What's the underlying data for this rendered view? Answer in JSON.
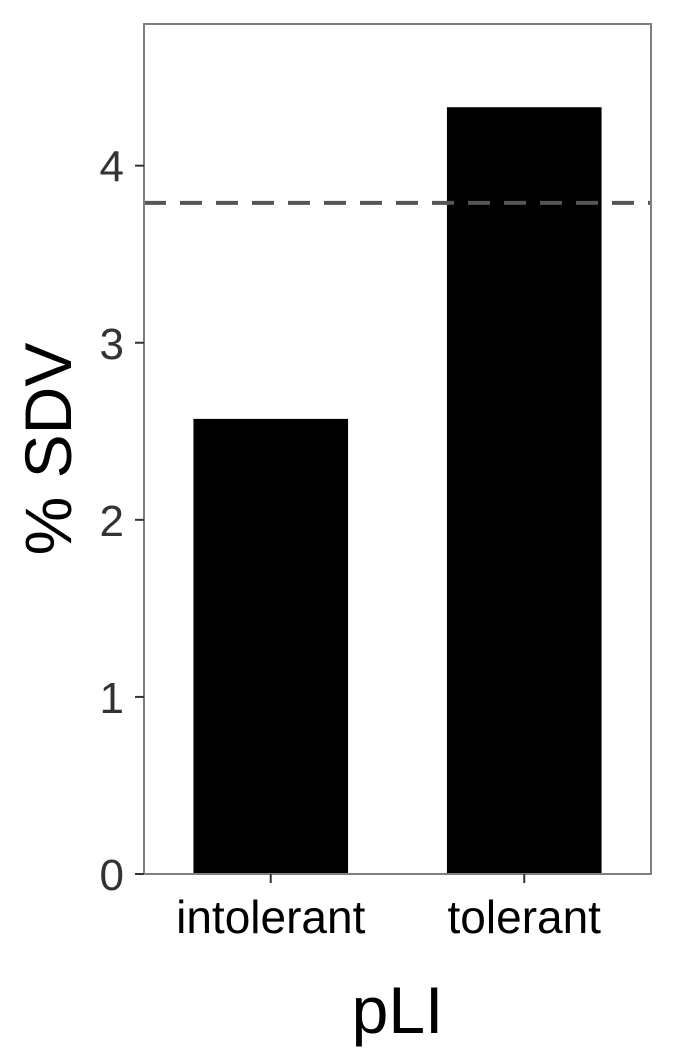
{
  "chart_data": {
    "type": "bar",
    "title": "",
    "xlabel": "pLI",
    "ylabel": "% SDV",
    "categories": [
      "intolerant",
      "tolerant"
    ],
    "values": [
      2.57,
      4.33
    ],
    "ylim": [
      0,
      4.8
    ],
    "yticks": [
      0,
      1,
      2,
      3,
      4
    ],
    "reference_line": {
      "value": 3.79,
      "style": "dashed"
    },
    "grid": false,
    "legend": "none",
    "colors": {
      "bar": "#000000",
      "panel_border": "#7f7f7f",
      "reference_line": "#555555",
      "tick_label": "#333333",
      "axis_title": "#000000"
    }
  }
}
